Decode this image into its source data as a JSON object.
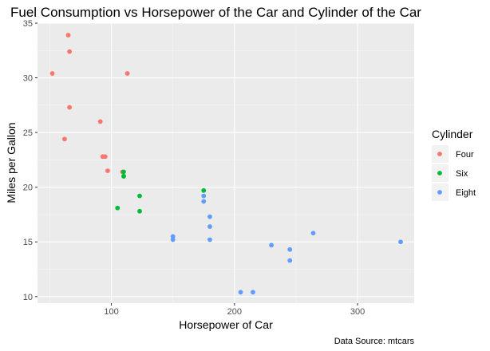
{
  "chart_data": {
    "type": "scatter",
    "title": "Fuel Consumption vs Horsepower of the Car and Cylinder of the Car",
    "xlabel": "Horsepower of Car",
    "ylabel": "Miles per Gallon",
    "caption": "Data Source: mtcars",
    "xlim": [
      40,
      346
    ],
    "ylim": [
      9.4,
      35.0
    ],
    "x_ticks": [
      100,
      200,
      300
    ],
    "y_ticks": [
      10,
      15,
      20,
      25,
      30,
      35
    ],
    "grid": true,
    "legend": {
      "title": "Cylinder",
      "position": "right"
    },
    "series": [
      {
        "name": "Four",
        "color": "#F8766D",
        "points": [
          [
            93,
            22.8
          ],
          [
            62,
            24.4
          ],
          [
            95,
            22.8
          ],
          [
            66,
            32.4
          ],
          [
            52,
            30.4
          ],
          [
            65,
            33.9
          ],
          [
            97,
            21.5
          ],
          [
            66,
            27.3
          ],
          [
            91,
            26.0
          ],
          [
            113,
            30.4
          ],
          [
            109,
            21.4
          ]
        ]
      },
      {
        "name": "Six",
        "color": "#00BA38",
        "points": [
          [
            110,
            21.0
          ],
          [
            110,
            21.0
          ],
          [
            110,
            21.4
          ],
          [
            105,
            18.1
          ],
          [
            123,
            19.2
          ],
          [
            123,
            17.8
          ],
          [
            175,
            19.7
          ]
        ]
      },
      {
        "name": "Eight",
        "color": "#619CFF",
        "points": [
          [
            175,
            18.7
          ],
          [
            245,
            14.3
          ],
          [
            180,
            16.4
          ],
          [
            180,
            17.3
          ],
          [
            180,
            15.2
          ],
          [
            205,
            10.4
          ],
          [
            215,
            10.4
          ],
          [
            230,
            14.7
          ],
          [
            150,
            15.5
          ],
          [
            150,
            15.2
          ],
          [
            245,
            13.3
          ],
          [
            175,
            19.2
          ],
          [
            264,
            15.8
          ],
          [
            335,
            15.0
          ]
        ]
      }
    ]
  }
}
